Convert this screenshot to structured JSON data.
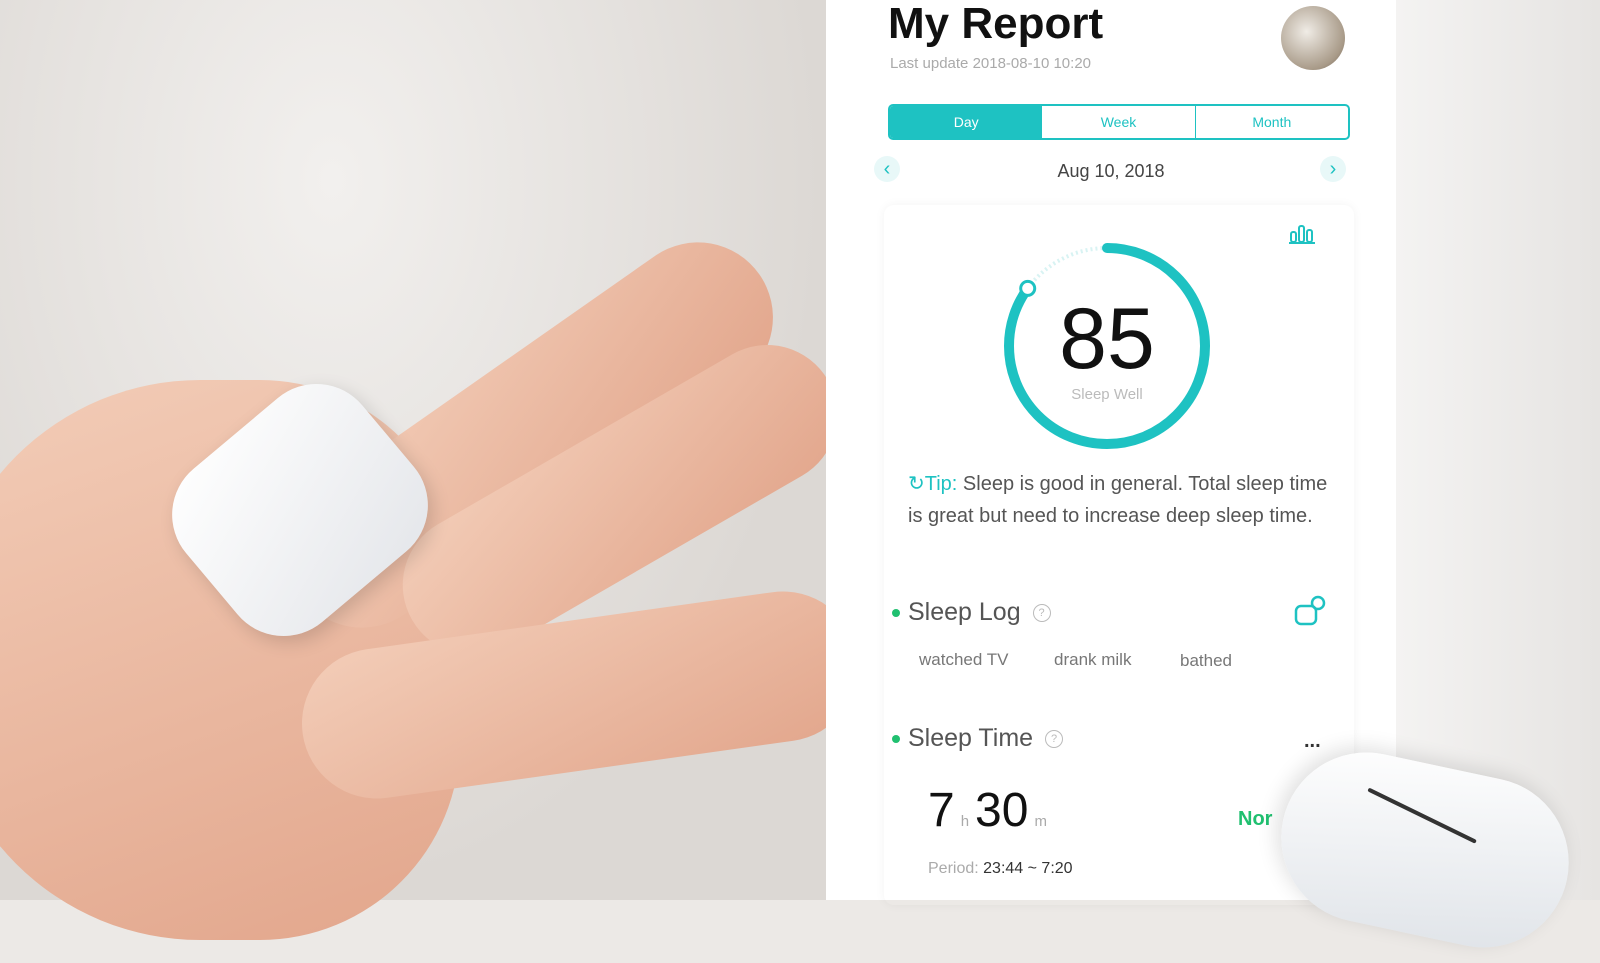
{
  "header": {
    "title": "My Report",
    "last_update": "Last update 2018-08-10 10:20"
  },
  "tabs": [
    {
      "label": "Day",
      "active": true
    },
    {
      "label": "Week"
    },
    {
      "label": "Month"
    }
  ],
  "date_nav": {
    "date": "Aug 10, 2018",
    "prev": "‹",
    "next": "›"
  },
  "score": {
    "value": "85",
    "label": "Sleep Well",
    "progress_percent": 85
  },
  "tip": {
    "label": "Tip:",
    "text": " Sleep is good in general. Total sleep time is great but need to increase deep sleep time."
  },
  "sleep_log": {
    "title": "Sleep Log",
    "help": "?",
    "tags": [
      "watched TV",
      "drank milk",
      "bathed"
    ]
  },
  "sleep_time": {
    "title": "Sleep Time",
    "help": "?",
    "more": "...",
    "hours": "7",
    "h_unit": "h",
    "minutes": "30",
    "m_unit": "m",
    "period_label": "Period:",
    "period": "23:44 ~ 7:20",
    "status": "Nor"
  },
  "colors": {
    "accent": "#1ec2c2",
    "green": "#20c070"
  }
}
